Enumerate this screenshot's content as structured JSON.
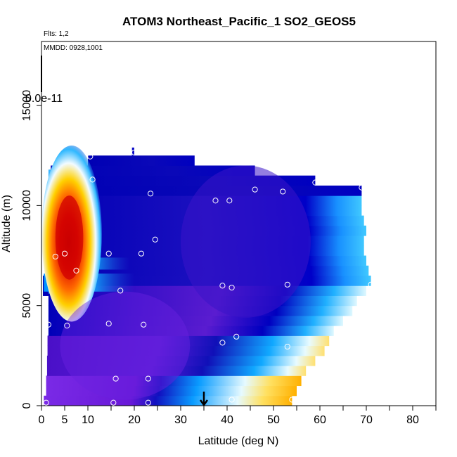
{
  "chart_data": {
    "type": "heatmap",
    "title": "ATOM3 Northeast_Pacific_1 SO2_GEOS5",
    "annotations": {
      "flights": "Flts: 1,2",
      "dates": "MMDD: 0928,1001",
      "scale_label": "0.0e-11"
    },
    "xlabel": "Latitude (deg N)",
    "ylabel": "Altitude (m)",
    "xlim": [
      0,
      85
    ],
    "ylim": [
      0,
      17500
    ],
    "x_ticks": [
      0,
      5,
      10,
      20,
      30,
      40,
      50,
      60,
      70,
      80
    ],
    "x_tick_labels": [
      "0",
      "5",
      "10",
      "20",
      "30",
      "40",
      "50",
      "60",
      "70",
      "80"
    ],
    "x_minor_ticks": [
      15,
      25,
      35,
      45,
      55,
      65,
      75,
      85
    ],
    "y_ticks": [
      0,
      5000,
      10000,
      15000
    ],
    "y_tick_labels": [
      "0",
      "5000",
      "10000",
      "15000"
    ],
    "grid": false,
    "color_scale": [
      "#0000b4",
      "#6a1ee0",
      "#1aa0ff",
      "#e8fbff",
      "#ffd000",
      "#ff6a00",
      "#c80000"
    ],
    "marker_latitude": 35,
    "observation_points": [
      {
        "x": 1,
        "y": 150
      },
      {
        "x": 15.5,
        "y": 150
      },
      {
        "x": 23,
        "y": 150
      },
      {
        "x": 16,
        "y": 1350
      },
      {
        "x": 23,
        "y": 1350
      },
      {
        "x": 41,
        "y": 300
      },
      {
        "x": 54,
        "y": 300
      },
      {
        "x": 39,
        "y": 3150
      },
      {
        "x": 42,
        "y": 3450
      },
      {
        "x": 53,
        "y": 2950
      },
      {
        "x": 1.5,
        "y": 4050
      },
      {
        "x": 5.5,
        "y": 4000
      },
      {
        "x": 14.5,
        "y": 4100
      },
      {
        "x": 22,
        "y": 4050
      },
      {
        "x": 17,
        "y": 5750
      },
      {
        "x": 39,
        "y": 6000
      },
      {
        "x": 41,
        "y": 5900
      },
      {
        "x": 53,
        "y": 6050
      },
      {
        "x": 71,
        "y": 6050
      },
      {
        "x": 3,
        "y": 7450
      },
      {
        "x": 5,
        "y": 7600
      },
      {
        "x": 7.5,
        "y": 6750
      },
      {
        "x": 14.5,
        "y": 7600
      },
      {
        "x": 21.5,
        "y": 7600
      },
      {
        "x": 24.5,
        "y": 8300
      },
      {
        "x": 37.5,
        "y": 10250
      },
      {
        "x": 40.5,
        "y": 10250
      },
      {
        "x": 23.5,
        "y": 10600
      },
      {
        "x": 46,
        "y": 10800
      },
      {
        "x": 52,
        "y": 10700
      },
      {
        "x": 59,
        "y": 11150
      },
      {
        "x": 11,
        "y": 11300
      },
      {
        "x": 69,
        "y": 10900
      },
      {
        "x": 10.5,
        "y": 12450
      },
      {
        "x": 20,
        "y": 12650
      }
    ]
  }
}
